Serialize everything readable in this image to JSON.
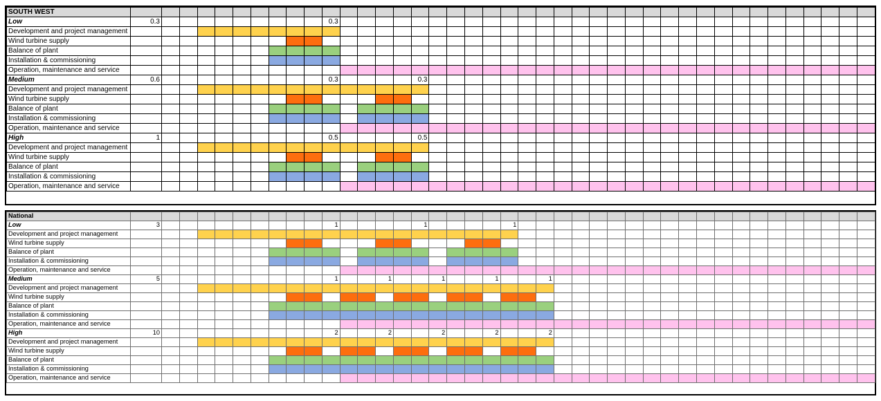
{
  "colors": {
    "development": "#ffd24d",
    "wind": "#fd6e0e",
    "balance": "#9ad07e",
    "installation": "#8aa9e1",
    "om": "#ffc2ed",
    "header": "#d9d9d9"
  },
  "period_columns": 40,
  "sections": [
    {
      "id": "sw",
      "title": "SOUTH WEST",
      "scenarios": [
        {
          "name": "Low",
          "total": "0.3",
          "marks": [
            {
              "col": 9,
              "label": "0.3"
            }
          ],
          "tasks": [
            {
              "label": "Development and project management",
              "color": "development",
              "spans": [
                [
                  2,
                  9
                ]
              ]
            },
            {
              "label": "Wind turbine supply",
              "color": "wind",
              "spans": [
                [
                  7,
                  8
                ]
              ]
            },
            {
              "label": "Balance of plant",
              "color": "balance",
              "spans": [
                [
                  6,
                  9
                ]
              ]
            },
            {
              "label": "Installation & commissioning",
              "color": "installation",
              "spans": [
                [
                  6,
                  9
                ]
              ]
            },
            {
              "label": "Operation, maintenance and service",
              "color": "om",
              "spans": [
                [
                  10,
                  39
                ]
              ]
            }
          ]
        },
        {
          "name": "Medium",
          "total": "0.6",
          "marks": [
            {
              "col": 9,
              "label": "0.3"
            },
            {
              "col": 14,
              "label": "0.3"
            }
          ],
          "tasks": [
            {
              "label": "Development and project management",
              "color": "development",
              "spans": [
                [
                  2,
                  14
                ]
              ]
            },
            {
              "label": "Wind turbine supply",
              "color": "wind",
              "spans": [
                [
                  7,
                  8
                ],
                [
                  12,
                  13
                ]
              ]
            },
            {
              "label": "Balance of plant",
              "color": "balance",
              "spans": [
                [
                  6,
                  9
                ],
                [
                  11,
                  14
                ]
              ]
            },
            {
              "label": "Installation & commissioning",
              "color": "installation",
              "spans": [
                [
                  6,
                  9
                ],
                [
                  11,
                  14
                ]
              ]
            },
            {
              "label": "Operation, maintenance and service",
              "color": "om",
              "spans": [
                [
                  10,
                  39
                ]
              ]
            }
          ]
        },
        {
          "name": "High",
          "total": "1",
          "marks": [
            {
              "col": 9,
              "label": "0.5"
            },
            {
              "col": 14,
              "label": "0.5"
            }
          ],
          "tasks": [
            {
              "label": "Development and project management",
              "color": "development",
              "spans": [
                [
                  2,
                  14
                ]
              ]
            },
            {
              "label": "Wind turbine supply",
              "color": "wind",
              "spans": [
                [
                  7,
                  8
                ],
                [
                  12,
                  13
                ]
              ]
            },
            {
              "label": "Balance of plant",
              "color": "balance",
              "spans": [
                [
                  6,
                  9
                ],
                [
                  11,
                  14
                ]
              ]
            },
            {
              "label": "Installation & commissioning",
              "color": "installation",
              "spans": [
                [
                  6,
                  9
                ],
                [
                  11,
                  14
                ]
              ]
            },
            {
              "label": "Operation, maintenance and service",
              "color": "om",
              "spans": [
                [
                  10,
                  39
                ]
              ]
            }
          ]
        }
      ]
    },
    {
      "id": "nat",
      "title": "National",
      "scenarios": [
        {
          "name": "Low",
          "total": "3",
          "marks": [
            {
              "col": 9,
              "label": "1"
            },
            {
              "col": 14,
              "label": "1"
            },
            {
              "col": 19,
              "label": "1"
            }
          ],
          "tasks": [
            {
              "label": "Development and project management",
              "color": "development",
              "spans": [
                [
                  2,
                  19
                ]
              ]
            },
            {
              "label": "Wind turbine supply",
              "color": "wind",
              "spans": [
                [
                  7,
                  8
                ],
                [
                  12,
                  13
                ],
                [
                  17,
                  18
                ]
              ]
            },
            {
              "label": "Balance of plant",
              "color": "balance",
              "spans": [
                [
                  6,
                  9
                ],
                [
                  11,
                  14
                ],
                [
                  16,
                  19
                ]
              ]
            },
            {
              "label": "Installation & commissioning",
              "color": "installation",
              "spans": [
                [
                  6,
                  9
                ],
                [
                  11,
                  14
                ],
                [
                  16,
                  19
                ]
              ]
            },
            {
              "label": "Operation, maintenance and service",
              "color": "om",
              "spans": [
                [
                  10,
                  39
                ]
              ]
            }
          ]
        },
        {
          "name": "Medium",
          "total": "5",
          "marks": [
            {
              "col": 9,
              "label": "1"
            },
            {
              "col": 12,
              "label": "1"
            },
            {
              "col": 15,
              "label": "1"
            },
            {
              "col": 18,
              "label": "1"
            },
            {
              "col": 21,
              "label": "1"
            }
          ],
          "tasks": [
            {
              "label": "Development and project management",
              "color": "development",
              "spans": [
                [
                  2,
                  21
                ]
              ]
            },
            {
              "label": "Wind turbine supply",
              "color": "wind",
              "spans": [
                [
                  7,
                  8
                ],
                [
                  10,
                  11
                ],
                [
                  13,
                  14
                ],
                [
                  16,
                  17
                ],
                [
                  19,
                  20
                ]
              ]
            },
            {
              "label": "Balance of plant",
              "color": "balance",
              "spans": [
                [
                  6,
                  21
                ]
              ]
            },
            {
              "label": "Installation & commissioning",
              "color": "installation",
              "spans": [
                [
                  6,
                  21
                ]
              ]
            },
            {
              "label": "Operation, maintenance and service",
              "color": "om",
              "spans": [
                [
                  10,
                  39
                ]
              ]
            }
          ]
        },
        {
          "name": "High",
          "total": "10",
          "marks": [
            {
              "col": 9,
              "label": "2"
            },
            {
              "col": 12,
              "label": "2"
            },
            {
              "col": 15,
              "label": "2"
            },
            {
              "col": 18,
              "label": "2"
            },
            {
              "col": 21,
              "label": "2"
            }
          ],
          "tasks": [
            {
              "label": "Development and project management",
              "color": "development",
              "spans": [
                [
                  2,
                  21
                ]
              ]
            },
            {
              "label": "Wind turbine supply",
              "color": "wind",
              "spans": [
                [
                  7,
                  8
                ],
                [
                  10,
                  11
                ],
                [
                  13,
                  14
                ],
                [
                  16,
                  17
                ],
                [
                  19,
                  20
                ]
              ]
            },
            {
              "label": "Balance of plant",
              "color": "balance",
              "spans": [
                [
                  6,
                  21
                ]
              ]
            },
            {
              "label": "Installation & commissioning",
              "color": "installation",
              "spans": [
                [
                  6,
                  21
                ]
              ]
            },
            {
              "label": "Operation, maintenance and service",
              "color": "om",
              "spans": [
                [
                  10,
                  39
                ]
              ]
            }
          ]
        }
      ]
    }
  ]
}
